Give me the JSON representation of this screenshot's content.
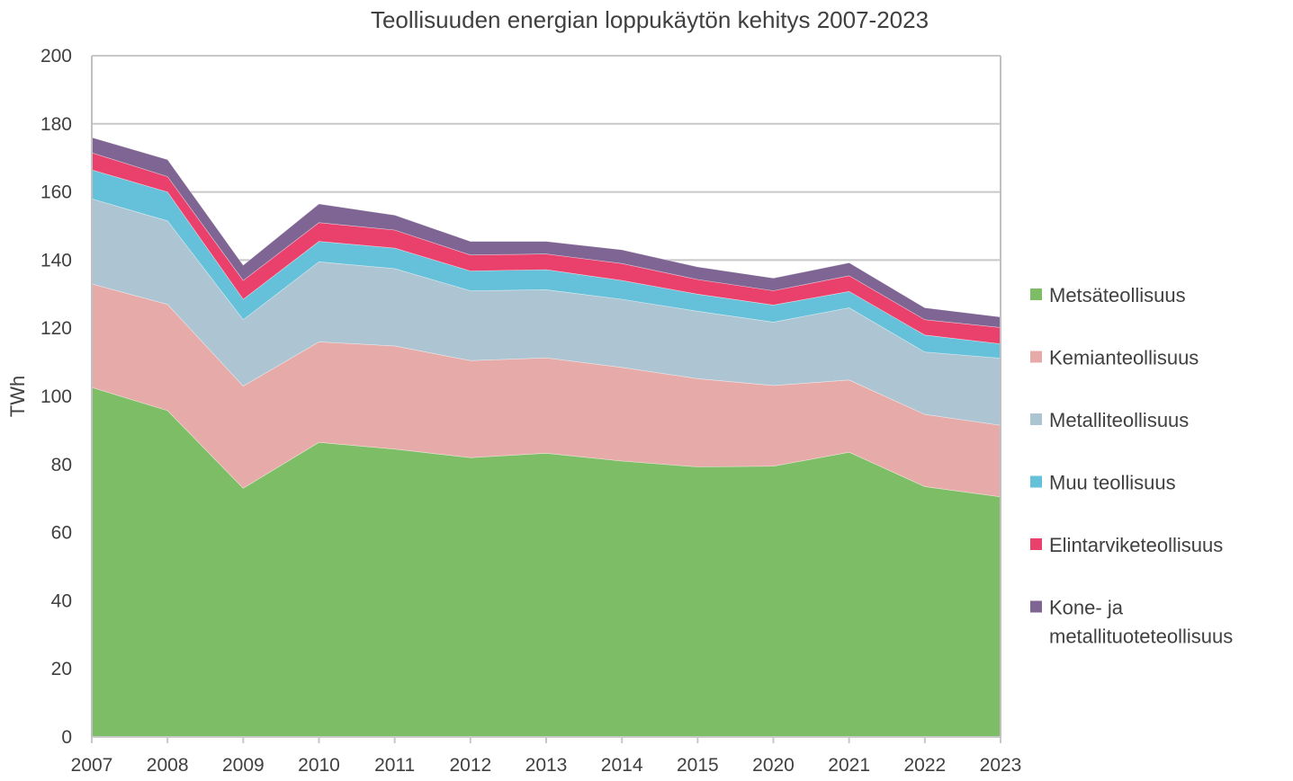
{
  "chart_data": {
    "type": "area",
    "stacked": true,
    "title": "Teollisuuden energian loppukäytön kehitys 2007-2023",
    "xlabel": "",
    "ylabel": "TWh",
    "ylim": [
      0,
      200
    ],
    "yticks": [
      0,
      20,
      40,
      60,
      80,
      100,
      120,
      140,
      160,
      180,
      200
    ],
    "grid": true,
    "legend_position": "right",
    "categories": [
      "2007",
      "2008",
      "2009",
      "2010",
      "2011",
      "2012",
      "2013",
      "2014",
      "2015",
      "2020",
      "2021",
      "2022",
      "2023"
    ],
    "series": [
      {
        "name": "Metsäteollisuus",
        "color": "#7dbd65",
        "values": [
          102.6,
          95.8,
          73.0,
          86.5,
          84.5,
          82.0,
          83.3,
          81.0,
          79.3,
          79.5,
          83.6,
          73.5,
          70.5
        ]
      },
      {
        "name": "Kemianteollisuus",
        "color": "#e6aba8",
        "values": [
          30.4,
          31.2,
          30.0,
          29.5,
          30.3,
          28.5,
          28.0,
          27.5,
          25.9,
          23.7,
          21.2,
          21.2,
          21.0
        ]
      },
      {
        "name": "Metalliteollisuus",
        "color": "#adc4d2",
        "values": [
          25.0,
          24.5,
          19.5,
          23.5,
          22.7,
          20.5,
          20.0,
          20.0,
          19.8,
          18.6,
          21.2,
          18.3,
          19.7
        ]
      },
      {
        "name": "Muu teollisuus",
        "color": "#65c1d9",
        "values": [
          8.5,
          8.5,
          6.0,
          6.0,
          6.0,
          5.8,
          5.9,
          5.5,
          5.0,
          5.0,
          4.8,
          5.0,
          4.2
        ]
      },
      {
        "name": "Elintarviketeollisuus",
        "color": "#e9416b",
        "values": [
          5.0,
          4.5,
          5.5,
          5.5,
          5.3,
          4.7,
          4.6,
          5.0,
          4.3,
          4.2,
          4.6,
          4.5,
          4.8
        ]
      },
      {
        "name": "Kone- ja metallituoteteollisuus",
        "legend_lines": [
          "Kone- ja",
          "metallituoteteollisuus"
        ],
        "color": "#7f6593",
        "values": [
          4.5,
          5.0,
          4.5,
          5.5,
          4.4,
          4.0,
          3.7,
          4.0,
          3.7,
          3.7,
          3.8,
          3.5,
          3.1
        ]
      }
    ]
  }
}
